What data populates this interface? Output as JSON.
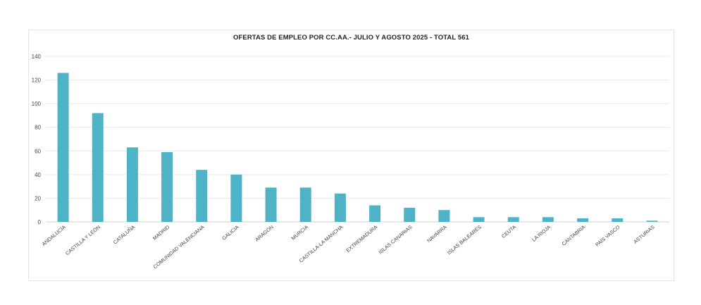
{
  "chart_data": {
    "type": "bar",
    "title": "OFERTAS DE EMPLEO POR CC.AA.- JULIO Y AGOSTO 2025 - TOTAL 561",
    "xlabel": "",
    "ylabel": "",
    "ylim": [
      0,
      140
    ],
    "yticks": [
      0,
      20,
      40,
      60,
      80,
      100,
      120,
      140
    ],
    "grid": true,
    "legend": "none",
    "bar_color": "#4fb3c8",
    "categories": [
      "ANDALUCÍA",
      "CASTILLA Y LEÓN",
      "CATALUÑA",
      "MADRID",
      "COMUNIDAD VALENCIANA",
      "GALICIA",
      "ARAGÓN",
      "MURCIA",
      "CASTILLA-LA MANCHA",
      "EXTREMADURA",
      "ISLAS CANARIAS",
      "NAVARRA",
      "ISLAS BALEARES",
      "CEUTA",
      "LA RIOJA",
      "CANTABRIA",
      "PAÍS VASCO",
      "ASTURIAS"
    ],
    "values": [
      126,
      92,
      63,
      59,
      44,
      40,
      29,
      29,
      24,
      14,
      12,
      10,
      4,
      4,
      4,
      3,
      3,
      1
    ]
  }
}
